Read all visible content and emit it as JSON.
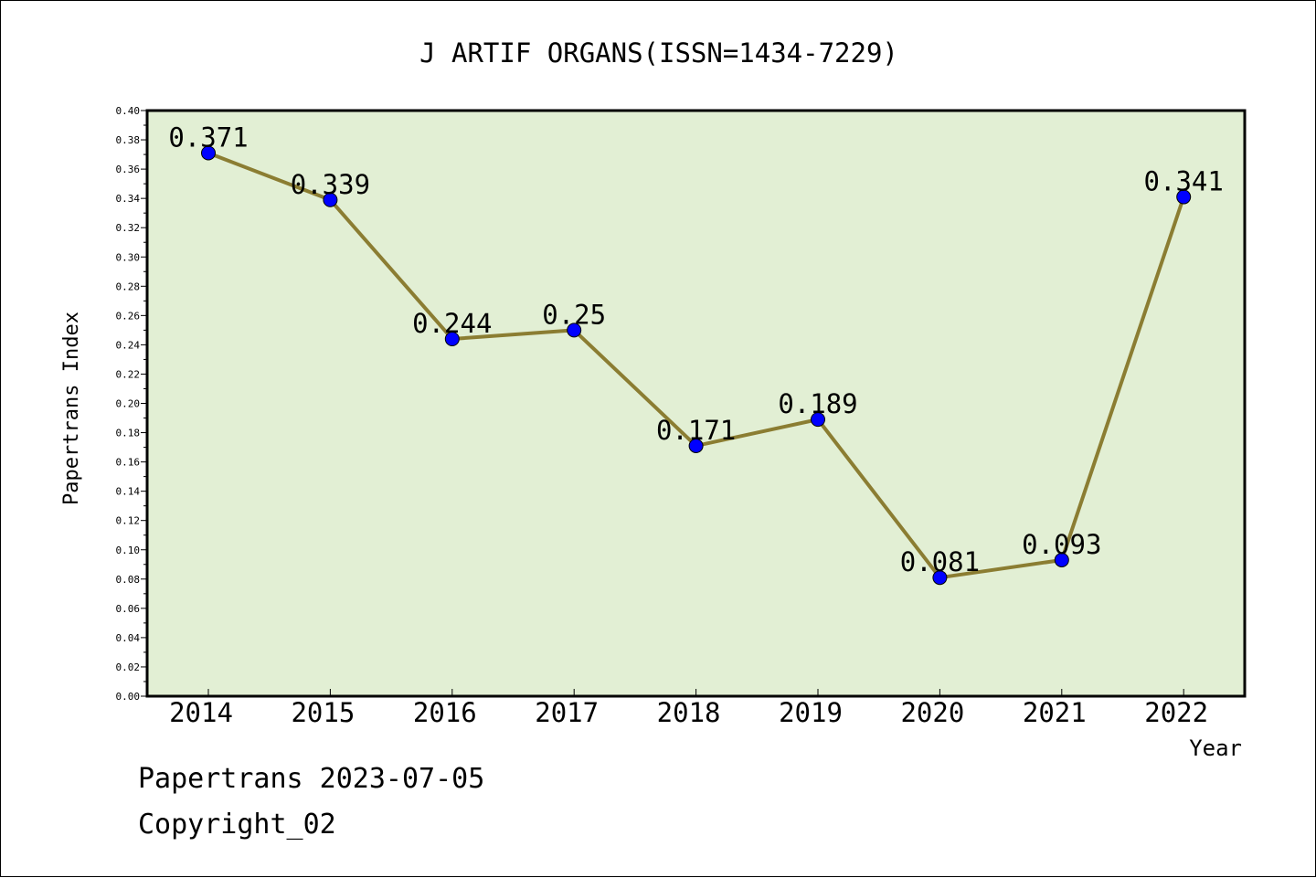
{
  "footer": {
    "date_line": "Papertrans 2023-07-05",
    "copyright": "Copyright_02"
  },
  "colors": {
    "plot_background": "#e2efd4",
    "line": "#8b7d32",
    "marker": "#0000ff",
    "axis": "#000000"
  },
  "chart_data": {
    "type": "line",
    "title": "J ARTIF ORGANS(ISSN=1434-7229)",
    "xlabel": "Year",
    "ylabel": "Papertrans Index",
    "categories": [
      "2014",
      "2015",
      "2016",
      "2017",
      "2018",
      "2019",
      "2020",
      "2021",
      "2022"
    ],
    "series": [
      {
        "values": [
          0.371,
          0.339,
          0.244,
          0.25,
          0.171,
          0.189,
          0.081,
          0.093,
          0.341
        ],
        "labels": [
          "0.371",
          "0.339",
          "0.244",
          "0.25",
          "0.171",
          "0.189",
          "0.081",
          "0.093",
          "0.341"
        ]
      }
    ],
    "ylim": [
      0,
      0.4
    ],
    "ytick_step": 0.02,
    "ytick_labels": [
      "0.00",
      "0.02",
      "0.04",
      "0.06",
      "0.08",
      "0.10",
      "0.12",
      "0.14",
      "0.16",
      "0.18",
      "0.20",
      "0.22",
      "0.24",
      "0.26",
      "0.28",
      "0.30",
      "0.32",
      "0.34",
      "0.36",
      "0.38",
      "0.40"
    ],
    "grid": false,
    "legend": "none"
  }
}
